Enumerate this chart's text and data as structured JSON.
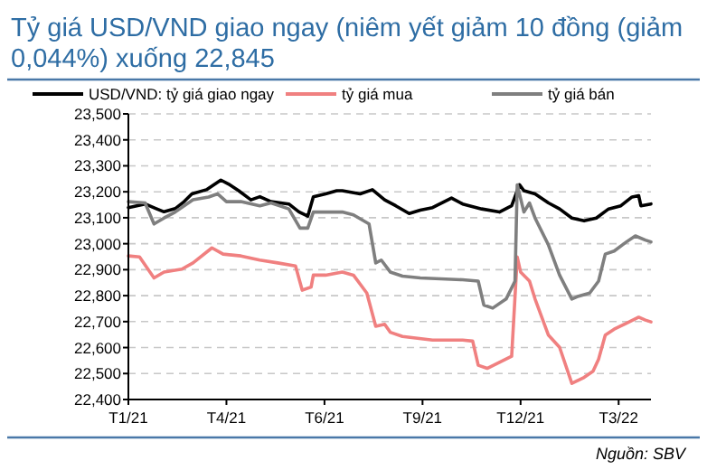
{
  "chart_data": {
    "type": "line",
    "title": "Tỷ giá USD/VND giao ngay (niêm yết giảm 10 đồng (giảm 0,044%) xuống 22,845",
    "xlim": [
      "2021-01-04",
      "2022-04-18"
    ],
    "xticks": [
      {
        "value": "2021-01-04",
        "label": "T1/21"
      },
      {
        "value": "2021-04-02",
        "label": "T4/21"
      },
      {
        "value": "2021-06-29",
        "label": "T6/21"
      },
      {
        "value": "2021-09-25",
        "label": "T9/21"
      },
      {
        "value": "2021-12-22",
        "label": "T12/21"
      },
      {
        "value": "2022-03-20",
        "label": "T3/22"
      }
    ],
    "ylim": [
      22400,
      23500
    ],
    "yticks": [
      {
        "value": 22400,
        "label": "22,400"
      },
      {
        "value": 22500,
        "label": "22,500"
      },
      {
        "value": 22600,
        "label": "22,600"
      },
      {
        "value": 22700,
        "label": "22,700"
      },
      {
        "value": 22800,
        "label": "22,800"
      },
      {
        "value": 22900,
        "label": "22,900"
      },
      {
        "value": 23000,
        "label": "23,000"
      },
      {
        "value": 23100,
        "label": "23,100"
      },
      {
        "value": 23200,
        "label": "23,200"
      },
      {
        "value": 23300,
        "label": "23,300"
      },
      {
        "value": 23400,
        "label": "23,400"
      },
      {
        "value": 23500,
        "label": "23,500"
      }
    ],
    "grid": "y",
    "legend": "top",
    "line_style": "solid",
    "marker": "none",
    "series": [
      {
        "name": "USD/VND: tỷ giá giao ngay",
        "color": "#000000",
        "x": [
          "2021-01-04",
          "2021-01-19",
          "2021-01-29",
          "2021-02-05",
          "2021-02-15",
          "2021-02-23",
          "2021-03-02",
          "2021-03-15",
          "2021-03-28",
          "2021-04-05",
          "2021-04-13",
          "2021-04-24",
          "2021-05-02",
          "2021-05-12",
          "2021-05-28",
          "2021-06-06",
          "2021-06-14",
          "2021-06-19",
          "2021-06-30",
          "2021-07-10",
          "2021-07-15",
          "2021-07-31",
          "2021-08-11",
          "2021-08-22",
          "2021-09-01",
          "2021-09-13",
          "2021-09-23",
          "2021-10-04",
          "2021-10-21",
          "2021-10-31",
          "2021-11-17",
          "2021-12-03",
          "2021-12-14",
          "2021-12-21",
          "2021-12-25",
          "2022-01-04",
          "2022-01-16",
          "2022-01-26",
          "2022-02-06",
          "2022-02-17",
          "2022-02-28",
          "2022-03-11",
          "2022-03-22",
          "2022-04-01",
          "2022-04-07",
          "2022-04-09",
          "2022-04-18"
        ],
        "values": [
          23139,
          23153,
          23135,
          23123,
          23135,
          23162,
          23192,
          23208,
          23245,
          23227,
          23204,
          23169,
          23181,
          23162,
          23153,
          23123,
          23106,
          23181,
          23192,
          23204,
          23204,
          23192,
          23208,
          23169,
          23146,
          23116,
          23129,
          23139,
          23176,
          23153,
          23134,
          23122,
          23146,
          23227,
          23204,
          23192,
          23157,
          23134,
          23099,
          23088,
          23099,
          23134,
          23146,
          23180,
          23185,
          23146,
          23153
        ]
      },
      {
        "name": "tỷ giá mua",
        "color": "#f08080",
        "x": [
          "2021-01-04",
          "2021-01-14",
          "2021-01-27",
          "2021-02-05",
          "2021-02-21",
          "2021-03-03",
          "2021-03-20",
          "2021-03-30",
          "2021-04-15",
          "2021-05-02",
          "2021-05-18",
          "2021-06-03",
          "2021-06-09",
          "2021-06-17",
          "2021-06-19",
          "2021-06-30",
          "2021-07-15",
          "2021-07-25",
          "2021-08-06",
          "2021-08-14",
          "2021-08-22",
          "2021-08-27",
          "2021-09-07",
          "2021-10-04",
          "2021-10-31",
          "2021-11-09",
          "2021-11-14",
          "2021-11-22",
          "2021-12-03",
          "2021-12-14",
          "2021-12-19",
          "2021-12-22",
          "2021-12-30",
          "2022-01-04",
          "2022-01-16",
          "2022-01-26",
          "2022-02-06",
          "2022-02-17",
          "2022-02-25",
          "2022-03-02",
          "2022-03-08",
          "2022-03-16",
          "2022-03-27",
          "2022-04-07",
          "2022-04-13",
          "2022-04-18"
        ],
        "values": [
          22953,
          22949,
          22868,
          22891,
          22902,
          22926,
          22984,
          22960,
          22953,
          22937,
          22926,
          22914,
          22821,
          22833,
          22879,
          22879,
          22891,
          22879,
          22810,
          22682,
          22690,
          22659,
          22643,
          22629,
          22629,
          22625,
          22532,
          22520,
          22543,
          22567,
          22949,
          22891,
          22856,
          22787,
          22648,
          22601,
          22462,
          22485,
          22509,
          22555,
          22648,
          22671,
          22694,
          22717,
          22706,
          22699
        ]
      },
      {
        "name": "tỷ giá bán",
        "color": "#7f7f7f",
        "x": [
          "2021-01-04",
          "2021-01-19",
          "2021-01-27",
          "2021-02-05",
          "2021-02-15",
          "2021-03-03",
          "2021-03-17",
          "2021-03-25",
          "2021-04-02",
          "2021-04-15",
          "2021-05-02",
          "2021-05-12",
          "2021-05-28",
          "2021-06-07",
          "2021-06-14",
          "2021-06-19",
          "2021-06-30",
          "2021-07-15",
          "2021-07-25",
          "2021-08-08",
          "2021-08-14",
          "2021-08-19",
          "2021-08-27",
          "2021-09-07",
          "2021-09-23",
          "2021-10-31",
          "2021-11-14",
          "2021-11-19",
          "2021-11-27",
          "2021-12-09",
          "2021-12-17",
          "2021-12-19",
          "2021-12-25",
          "2021-12-30",
          "2022-01-04",
          "2022-01-16",
          "2022-01-26",
          "2022-02-06",
          "2022-02-12",
          "2022-02-22",
          "2022-03-02",
          "2022-03-08",
          "2022-03-16",
          "2022-03-27",
          "2022-04-04",
          "2022-04-13",
          "2022-04-18"
        ],
        "values": [
          23162,
          23157,
          23076,
          23099,
          23122,
          23169,
          23180,
          23192,
          23162,
          23162,
          23146,
          23157,
          23134,
          23060,
          23060,
          23122,
          23122,
          23122,
          23111,
          23076,
          22926,
          22937,
          22891,
          22875,
          22868,
          22861,
          22856,
          22764,
          22752,
          22787,
          22856,
          23227,
          23122,
          23157,
          23099,
          22995,
          22879,
          22787,
          22798,
          22810,
          22856,
          22960,
          22972,
          23007,
          23030,
          23014,
          23007
        ]
      }
    ],
    "annotations": [
      "Nguồn: SBV"
    ]
  }
}
